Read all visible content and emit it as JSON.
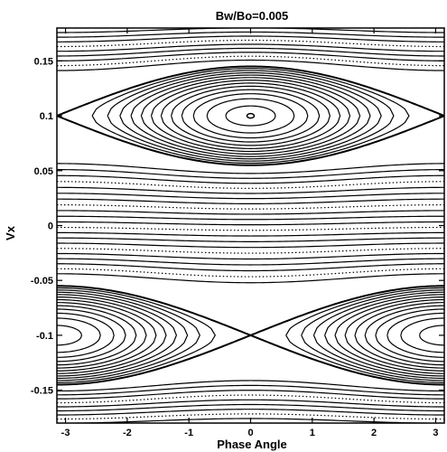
{
  "chart_data": {
    "type": "line",
    "title": "Bw/Bo=0.005",
    "xlabel": "Phase Angle",
    "ylabel": "Vx",
    "xlim": [
      -3.14,
      3.14
    ],
    "ylim": [
      -0.18,
      0.18
    ],
    "xticks": [
      -3,
      -2,
      -1,
      0,
      1,
      2,
      3
    ],
    "xtick_labels": [
      "-3",
      "-2",
      "-1",
      "0",
      "1",
      "2",
      "3"
    ],
    "yticks": [
      -0.15,
      -0.1,
      -0.05,
      0,
      0.05,
      0.1,
      0.15
    ],
    "ytick_labels": [
      "-0.15",
      "-0.1",
      "-0.05",
      "0",
      "0.05",
      "0.1",
      "0.15"
    ],
    "grid": false,
    "legend": "none",
    "line_color": "#000000",
    "islands": [
      {
        "name": "upper-island",
        "center_phase": 0,
        "center_vx": 0.1,
        "half_width": 0.045
      },
      {
        "name": "lower-island",
        "center_phase": 3.14159,
        "center_vx": -0.1,
        "half_width": 0.045
      }
    ],
    "separatrix_x_points": [
      {
        "phase": -3.14,
        "vx": 0.1
      },
      {
        "phase": 3.14,
        "vx": 0.1
      },
      {
        "phase": 0,
        "vx": -0.1
      }
    ],
    "series": [
      {
        "type": "passing",
        "vx_levels": [
          0.178,
          0.174,
          0.17,
          0.166,
          0.162,
          0.158,
          0.154,
          0.15,
          0.146
        ]
      },
      {
        "type": "trapped-upper",
        "levels": [
          0.04,
          0.12,
          0.2,
          0.28,
          0.36,
          0.44,
          0.52,
          0.6,
          0.68,
          0.76,
          0.84,
          0.92
        ]
      },
      {
        "type": "passing",
        "vx_levels": [
          0.052,
          0.047,
          0.042,
          0.037,
          0.032,
          0.027,
          0.022,
          0.017,
          0.012,
          0.007,
          0.002,
          -0.003,
          -0.008,
          -0.013,
          -0.018,
          -0.023,
          -0.028,
          -0.033,
          -0.038,
          -0.043,
          -0.048
        ]
      },
      {
        "type": "trapped-lower",
        "levels": [
          0.04,
          0.12,
          0.2,
          0.28,
          0.36,
          0.44,
          0.52,
          0.6,
          0.68,
          0.76,
          0.84,
          0.92
        ]
      },
      {
        "type": "passing",
        "vx_levels": [
          -0.146,
          -0.15,
          -0.154,
          -0.158,
          -0.162,
          -0.166,
          -0.17,
          -0.174,
          -0.178
        ]
      }
    ]
  }
}
